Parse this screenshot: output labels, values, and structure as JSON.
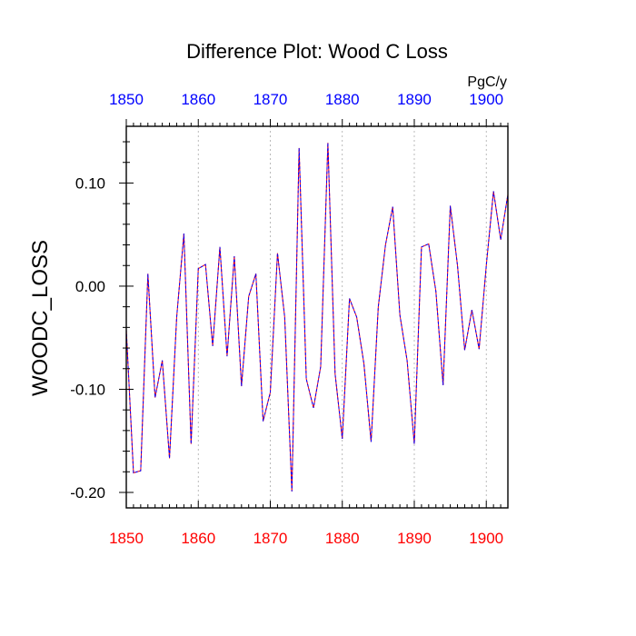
{
  "chart_data": {
    "type": "line",
    "title": "Difference Plot: Wood C Loss",
    "ylabel": "WOODC_LOSS",
    "units": "PgC/y",
    "xlim": [
      1850,
      1903
    ],
    "ylim": [
      -0.215,
      0.155
    ],
    "x_ticks": [
      "1850",
      "1860",
      "1870",
      "1880",
      "1890",
      "1900"
    ],
    "y_ticks": [
      "0.10",
      "0.00",
      "-0.10",
      "-0.20"
    ],
    "grid": "vertical dotted lines at major x ticks",
    "bottom_tick_color": "#ff0000",
    "top_tick_color": "#0000ff",
    "series": [
      {
        "color": "#ff0000",
        "style": "solid",
        "x": [
          1850,
          1851,
          1852,
          1853,
          1854,
          1855,
          1856,
          1857,
          1858,
          1859,
          1860,
          1861,
          1862,
          1863,
          1864,
          1865,
          1866,
          1867,
          1868,
          1869,
          1870,
          1871,
          1872,
          1873,
          1874,
          1875,
          1876,
          1877,
          1878,
          1879,
          1880,
          1881,
          1882,
          1883,
          1884,
          1885,
          1886,
          1887,
          1888,
          1889,
          1890,
          1891,
          1892,
          1893,
          1894,
          1895,
          1896,
          1897,
          1898,
          1899,
          1900,
          1901,
          1902,
          1903
        ],
        "y": [
          -0.042,
          -0.181,
          -0.179,
          0.012,
          -0.108,
          -0.072,
          -0.167,
          -0.03,
          0.051,
          -0.153,
          0.017,
          0.021,
          -0.058,
          0.038,
          -0.068,
          0.029,
          -0.097,
          -0.01,
          0.012,
          -0.131,
          -0.103,
          0.032,
          -0.03,
          -0.199,
          0.134,
          -0.09,
          -0.118,
          -0.078,
          0.139,
          -0.085,
          -0.148,
          -0.012,
          -0.03,
          -0.075,
          -0.151,
          -0.02,
          0.04,
          0.077,
          -0.028,
          -0.072,
          -0.153,
          0.038,
          0.041,
          -0.005,
          -0.096,
          0.078,
          0.02,
          -0.062,
          -0.023,
          -0.061,
          0.02,
          0.092,
          0.045,
          0.089
        ]
      },
      {
        "color": "#0000ff",
        "style": "dashed",
        "x": [
          1850,
          1851,
          1852,
          1853,
          1854,
          1855,
          1856,
          1857,
          1858,
          1859,
          1860,
          1861,
          1862,
          1863,
          1864,
          1865,
          1866,
          1867,
          1868,
          1869,
          1870,
          1871,
          1872,
          1873,
          1874,
          1875,
          1876,
          1877,
          1878,
          1879,
          1880,
          1881,
          1882,
          1883,
          1884,
          1885,
          1886,
          1887,
          1888,
          1889,
          1890,
          1891,
          1892,
          1893,
          1894,
          1895,
          1896,
          1897,
          1898,
          1899,
          1900,
          1901,
          1902,
          1903
        ],
        "y": [
          -0.042,
          -0.181,
          -0.179,
          0.012,
          -0.108,
          -0.072,
          -0.167,
          -0.03,
          0.051,
          -0.153,
          0.017,
          0.021,
          -0.058,
          0.038,
          -0.068,
          0.029,
          -0.097,
          -0.01,
          0.012,
          -0.131,
          -0.103,
          0.032,
          -0.03,
          -0.199,
          0.134,
          -0.09,
          -0.118,
          -0.078,
          0.139,
          -0.085,
          -0.148,
          -0.012,
          -0.03,
          -0.075,
          -0.151,
          -0.02,
          0.04,
          0.077,
          -0.028,
          -0.072,
          -0.153,
          0.038,
          0.041,
          -0.005,
          -0.096,
          0.078,
          0.02,
          -0.062,
          -0.023,
          -0.061,
          0.02,
          0.092,
          0.045,
          0.089
        ]
      }
    ]
  }
}
